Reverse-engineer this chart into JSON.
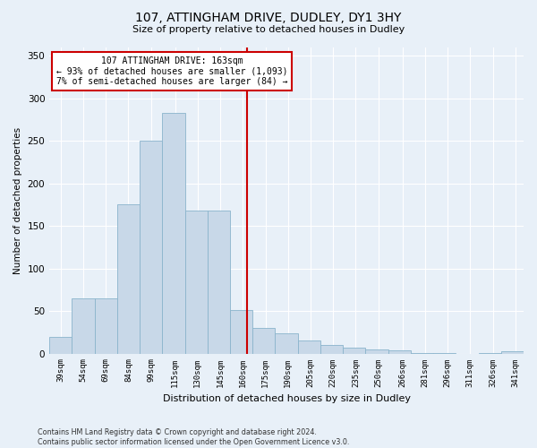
{
  "title": "107, ATTINGHAM DRIVE, DUDLEY, DY1 3HY",
  "subtitle": "Size of property relative to detached houses in Dudley",
  "xlabel": "Distribution of detached houses by size in Dudley",
  "ylabel": "Number of detached properties",
  "bar_color": "#c8d8e8",
  "bar_edge_color": "#8ab4cc",
  "background_color": "#e8f0f8",
  "grid_color": "#ffffff",
  "fig_bg_color": "#e8f0f8",
  "vline_x": 163,
  "vline_color": "#cc0000",
  "annotation_text": "107 ATTINGHAM DRIVE: 163sqm\n← 93% of detached houses are smaller (1,093)\n7% of semi-detached houses are larger (84) →",
  "annotation_box_color": "#cc0000",
  "categories": [
    "39sqm",
    "54sqm",
    "69sqm",
    "84sqm",
    "99sqm",
    "115sqm",
    "130sqm",
    "145sqm",
    "160sqm",
    "175sqm",
    "190sqm",
    "205sqm",
    "220sqm",
    "235sqm",
    "250sqm",
    "266sqm",
    "281sqm",
    "296sqm",
    "311sqm",
    "326sqm",
    "341sqm"
  ],
  "bin_edges": [
    31.5,
    46.5,
    61.5,
    76.5,
    91.5,
    106.5,
    121.5,
    136.5,
    151.5,
    166.5,
    181.5,
    196.5,
    211.5,
    226.5,
    241.5,
    256.5,
    271.5,
    286.5,
    301.5,
    316.5,
    331.5,
    346.5
  ],
  "bin_centers": [
    39,
    54,
    69,
    84,
    99,
    115,
    130,
    145,
    160,
    175,
    190,
    205,
    220,
    235,
    250,
    266,
    281,
    296,
    311,
    326,
    341
  ],
  "heights": [
    20,
    65,
    65,
    175,
    250,
    283,
    168,
    168,
    51,
    30,
    24,
    15,
    10,
    7,
    5,
    4,
    1,
    1,
    0,
    1,
    3
  ],
  "ylim": [
    0,
    360
  ],
  "yticks": [
    0,
    50,
    100,
    150,
    200,
    250,
    300,
    350
  ],
  "footer_text": "Contains HM Land Registry data © Crown copyright and database right 2024.\nContains public sector information licensed under the Open Government Licence v3.0.",
  "figsize": [
    6.0,
    5.0
  ],
  "dpi": 100
}
